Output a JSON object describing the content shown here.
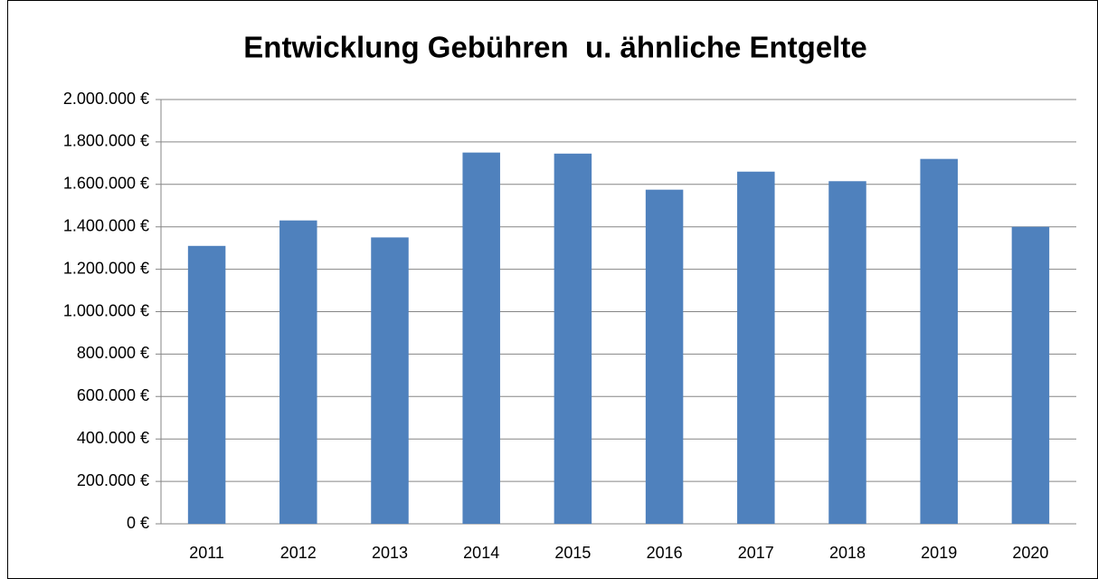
{
  "chart_data": {
    "type": "bar",
    "title": "Entwicklung Gebühren  u. ähnliche Entgelte",
    "categories": [
      "2011",
      "2012",
      "2013",
      "2014",
      "2015",
      "2016",
      "2017",
      "2018",
      "2019",
      "2020"
    ],
    "values": [
      1310000,
      1430000,
      1350000,
      1750000,
      1745000,
      1575000,
      1660000,
      1615000,
      1720000,
      1400000
    ],
    "color": "#4f81bd",
    "ylim": [
      0,
      2000000
    ],
    "yticks": [
      {
        "value": 0,
        "label": "0 €"
      },
      {
        "value": 200000,
        "label": "200.000 €"
      },
      {
        "value": 400000,
        "label": "400.000 €"
      },
      {
        "value": 600000,
        "label": "600.000 €"
      },
      {
        "value": 800000,
        "label": "800.000 €"
      },
      {
        "value": 1000000,
        "label": "1.000.000 €"
      },
      {
        "value": 1200000,
        "label": "1.200.000 €"
      },
      {
        "value": 1400000,
        "label": "1.400.000 €"
      },
      {
        "value": 1600000,
        "label": "1.600.000 €"
      },
      {
        "value": 1800000,
        "label": "1.800.000 €"
      },
      {
        "value": 2000000,
        "label": "2.000.000 €"
      }
    ],
    "grid": true
  }
}
